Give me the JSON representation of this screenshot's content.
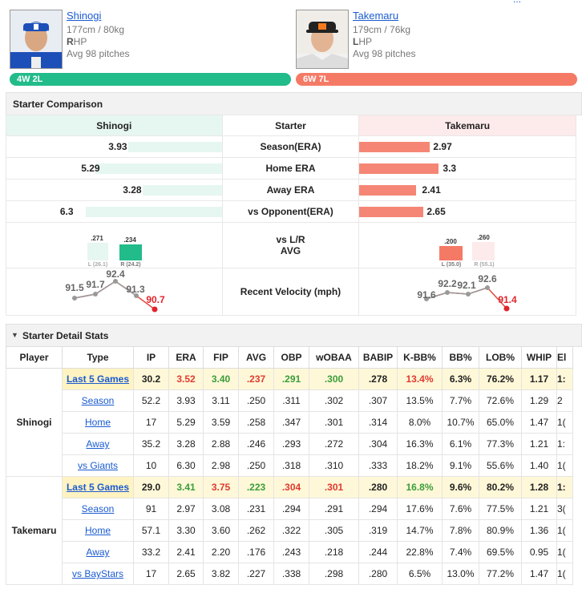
{
  "top_link": "...",
  "pitchers": {
    "left": {
      "name": "Shinogi",
      "hw": "177cm / 80kg",
      "hand_bold": "R",
      "hand_rest": "HP",
      "avg": "Avg 98 pitches",
      "record": "4W 2L",
      "color": "#22bb8a"
    },
    "right": {
      "name": "Takemaru",
      "hw": "179cm / 76kg",
      "hand_bold": "L",
      "hand_rest": "HP",
      "avg": "Avg 98 pitches",
      "record": "6W 7L",
      "color": "#f57a66"
    }
  },
  "comparison": {
    "title": "Starter Comparison",
    "header": {
      "left": "Shinogi",
      "mid": "Starter",
      "right": "Takemaru"
    },
    "rows": [
      {
        "label": "Season(ERA)",
        "left": "3.93",
        "right": "2.97",
        "left_frac": 0.69,
        "right_frac": 0.52
      },
      {
        "label": "Home ERA",
        "left": "5.29",
        "right": "3.3",
        "left_frac": 0.93,
        "right_frac": 0.58
      },
      {
        "label": "Away ERA",
        "left": "3.28",
        "right": "2.41",
        "left_frac": 0.58,
        "right_frac": 0.42
      },
      {
        "label": "vs Opponent(ERA)",
        "left": "6.3",
        "right": "2.65",
        "left_frac": 1.0,
        "right_frac": 0.47
      }
    ],
    "lr": {
      "label1": "vs L/R",
      "label2": "AVG",
      "left": {
        "L": ".271",
        "R": ".234",
        "L_lab": "L (26.1)",
        "R_lab": "R (24.2)"
      },
      "right": {
        "L": ".200",
        "R": ".260",
        "L_lab": "L (35.0)",
        "R_lab": "R (55.1)"
      }
    },
    "velocity": {
      "label": "Recent Velocity (mph)",
      "left": [
        "91.5",
        "91.7",
        "92.4",
        "91.3",
        "90.7"
      ],
      "right": [
        "91.6",
        "92.2",
        "92.1",
        "92.6",
        "91.4"
      ]
    }
  },
  "detail": {
    "title": "Starter Detail Stats",
    "columns": [
      "Player",
      "Type",
      "IP",
      "ERA",
      "FIP",
      "AVG",
      "OBP",
      "wOBAA",
      "BABIP",
      "K-BB%",
      "BB%",
      "LOB%",
      "WHIP",
      "El"
    ],
    "groups": [
      {
        "player": "Shinogi",
        "rows": [
          [
            "Last 5 Games",
            "30.2",
            "3.52",
            "3.40",
            ".237",
            ".291",
            ".300",
            ".278",
            "13.4%",
            "6.3%",
            "76.2%",
            "1.17",
            "1:"
          ],
          [
            "Season",
            "52.2",
            "3.93",
            "3.11",
            ".250",
            ".311",
            ".302",
            ".307",
            "13.5%",
            "7.7%",
            "72.6%",
            "1.29",
            "2"
          ],
          [
            "Home",
            "17",
            "5.29",
            "3.59",
            ".258",
            ".347",
            ".301",
            ".314",
            "8.0%",
            "10.7%",
            "65.0%",
            "1.47",
            "1("
          ],
          [
            "Away",
            "35.2",
            "3.28",
            "2.88",
            ".246",
            ".293",
            ".272",
            ".304",
            "16.3%",
            "6.1%",
            "77.3%",
            "1.21",
            "1:"
          ],
          [
            "vs Giants",
            "10",
            "6.30",
            "2.98",
            ".250",
            ".318",
            ".310",
            ".333",
            "18.2%",
            "9.1%",
            "55.6%",
            "1.40",
            "1("
          ]
        ]
      },
      {
        "player": "Takemaru",
        "rows": [
          [
            "Last 5 Games",
            "29.0",
            "3.41",
            "3.75",
            ".223",
            ".304",
            ".301",
            ".280",
            "16.8%",
            "9.6%",
            "80.2%",
            "1.28",
            "1:"
          ],
          [
            "Season",
            "91",
            "2.97",
            "3.08",
            ".231",
            ".294",
            ".291",
            ".294",
            "17.6%",
            "7.6%",
            "77.5%",
            "1.21",
            "3("
          ],
          [
            "Home",
            "57.1",
            "3.30",
            "3.60",
            ".262",
            ".322",
            ".305",
            ".319",
            "14.7%",
            "7.8%",
            "80.9%",
            "1.36",
            "1("
          ],
          [
            "Away",
            "33.2",
            "2.41",
            "2.20",
            ".176",
            ".243",
            ".218",
            ".244",
            "22.8%",
            "7.4%",
            "69.5%",
            "0.95",
            "1("
          ],
          [
            "vs BayStars",
            "17",
            "2.65",
            "3.82",
            ".227",
            ".338",
            ".298",
            ".280",
            "6.5%",
            "13.0%",
            "77.2%",
            "1.47",
            "1("
          ]
        ]
      }
    ]
  }
}
